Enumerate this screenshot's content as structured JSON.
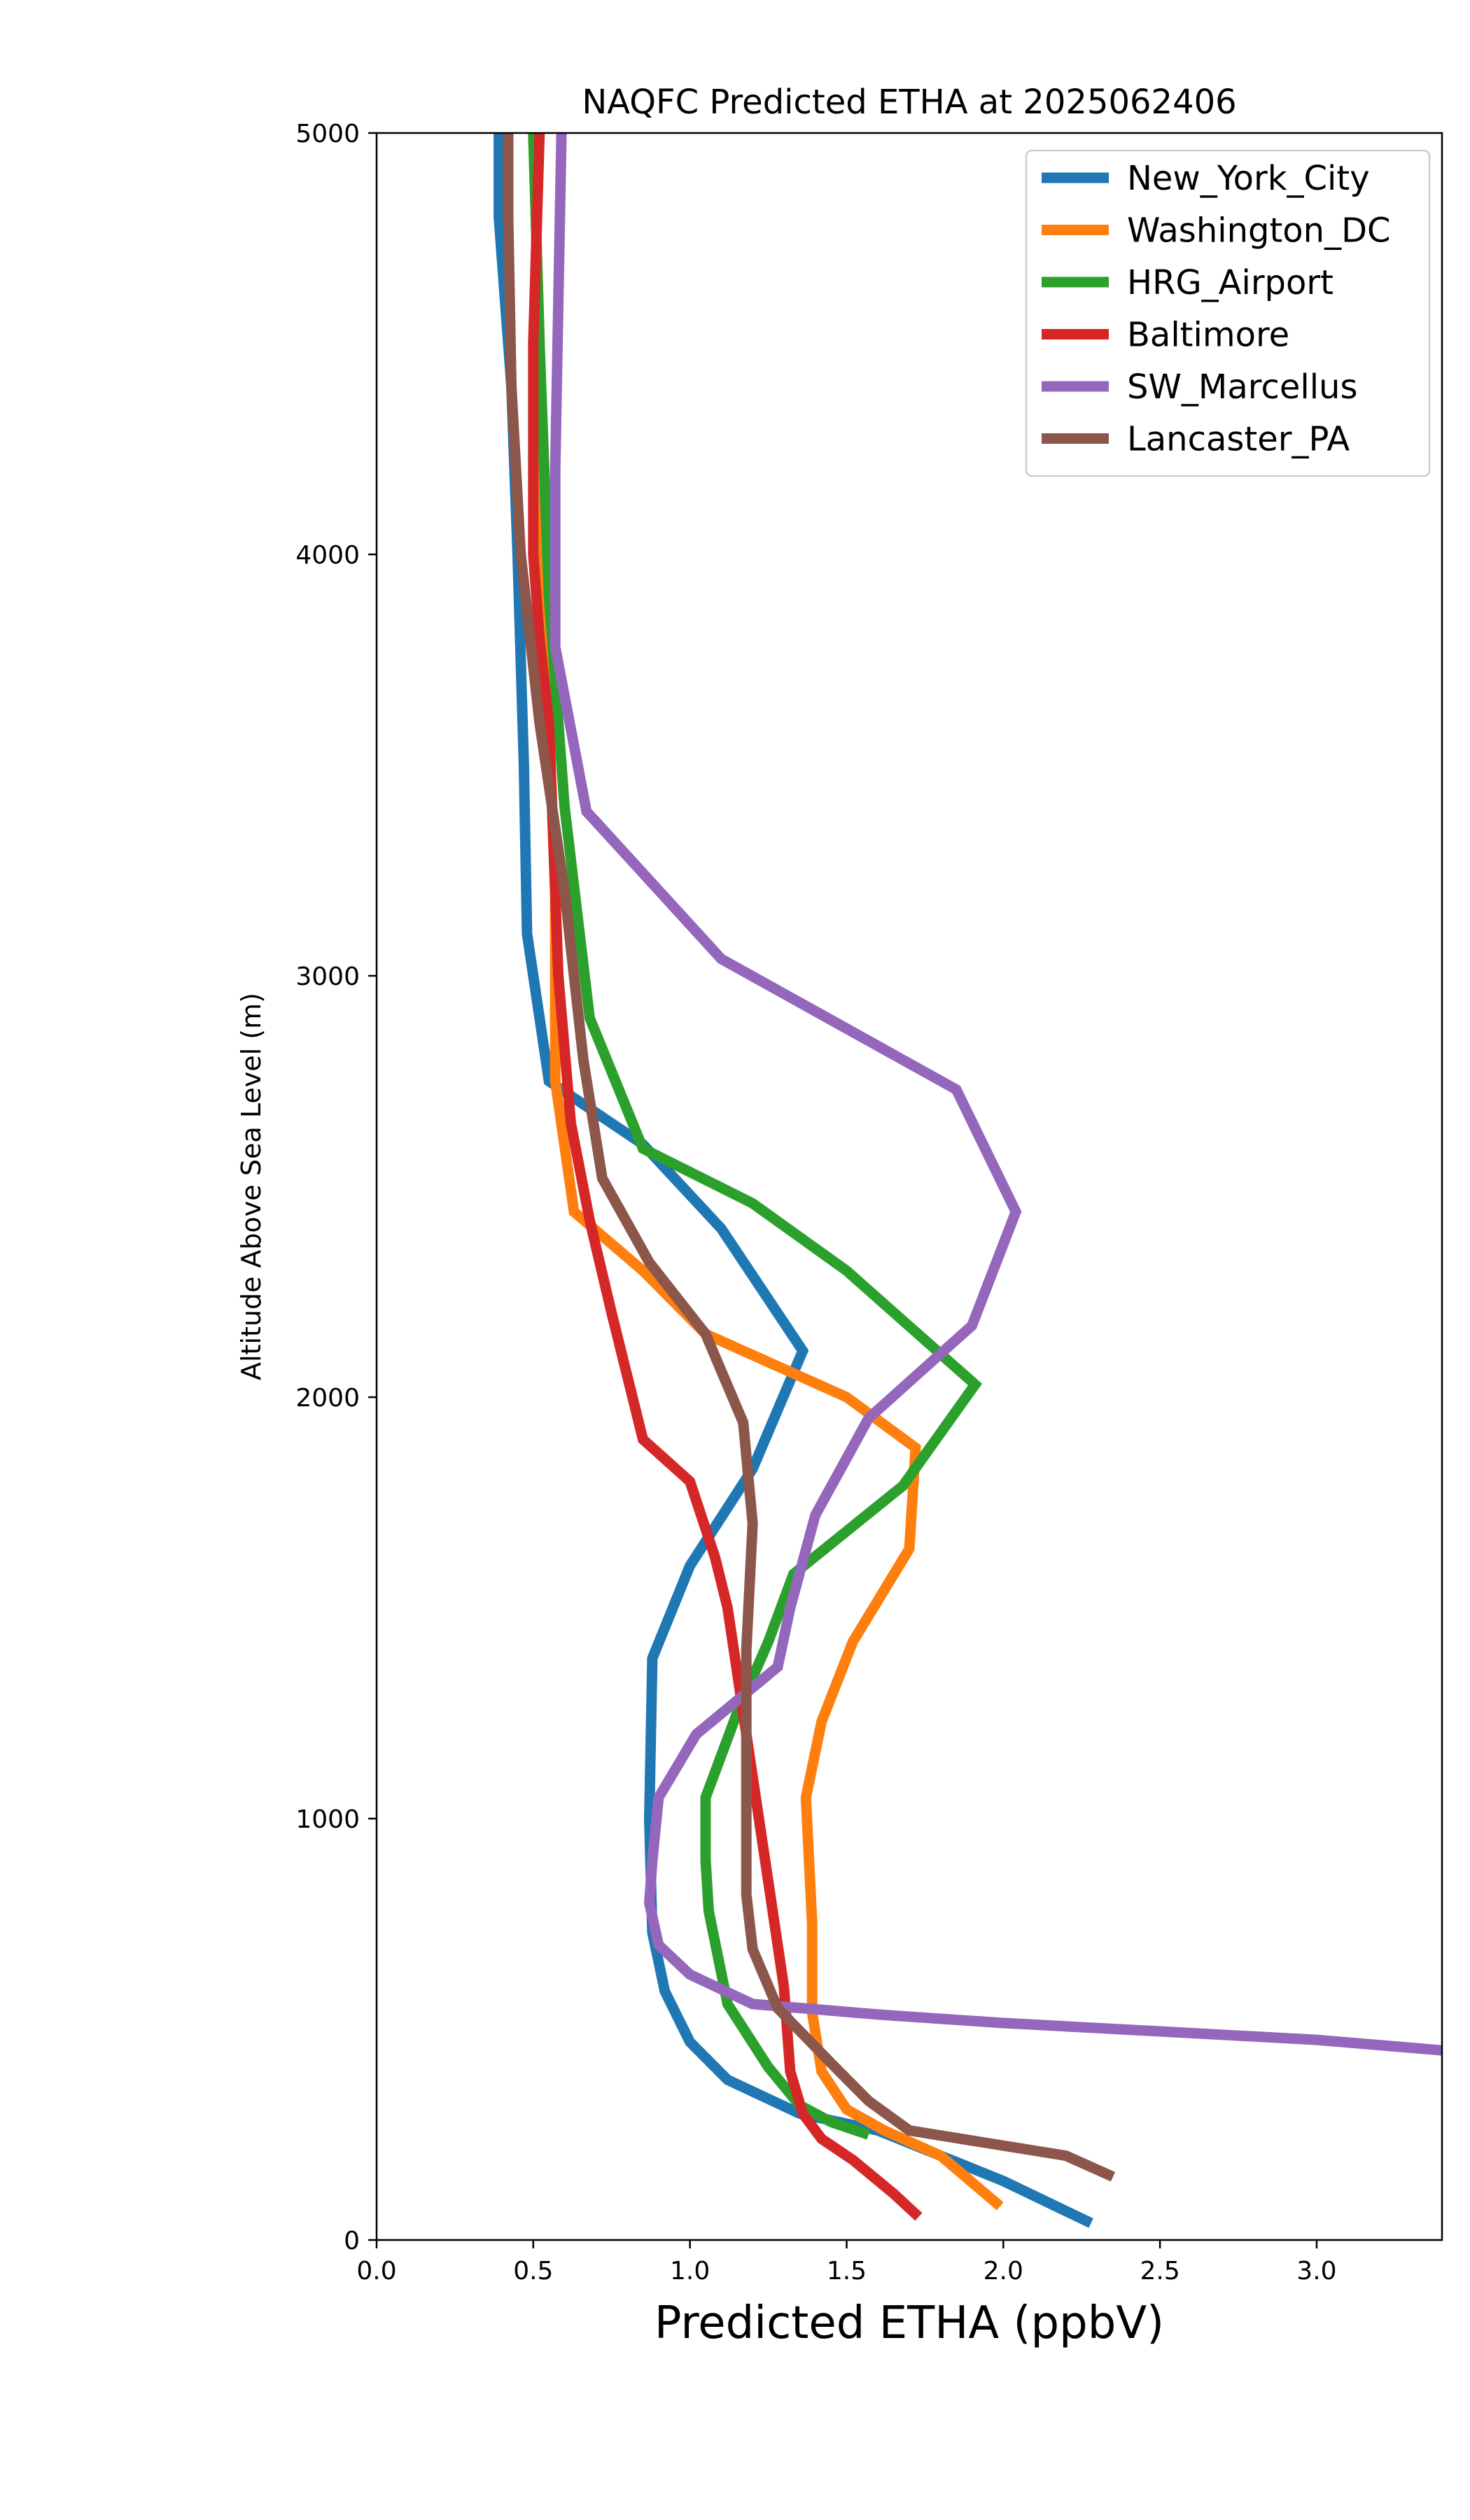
{
  "chart_data": {
    "type": "line",
    "title": "NAQFC Predicted ETHA at 2025062406",
    "xlabel": "Predicted ETHA (ppbV)",
    "ylabel": "Altitude Above Sea Level (m)",
    "xlim": [
      0,
      3.4
    ],
    "ylim": [
      0,
      5000
    ],
    "xticks": [
      0.0,
      0.5,
      1.0,
      1.5,
      2.0,
      2.5,
      3.0
    ],
    "xtick_labels": [
      "0.0",
      "0.5",
      "1.0",
      "1.5",
      "2.0",
      "2.5",
      "3.0"
    ],
    "yticks": [
      0,
      1000,
      2000,
      3000,
      4000,
      5000
    ],
    "ytick_labels": [
      "0",
      "1000",
      "2000",
      "3000",
      "4000",
      "5000"
    ],
    "grid": false,
    "legend_position": "top-right",
    "series": [
      {
        "name": "New_York_City",
        "color": "#1f77b4",
        "points": [
          [
            2.28,
            40
          ],
          [
            2.0,
            140
          ],
          [
            1.6,
            260
          ],
          [
            1.35,
            300
          ],
          [
            1.12,
            380
          ],
          [
            1.0,
            470
          ],
          [
            0.92,
            590
          ],
          [
            0.88,
            730
          ],
          [
            0.87,
            1000
          ],
          [
            0.88,
            1380
          ],
          [
            1.0,
            1600
          ],
          [
            1.2,
            1830
          ],
          [
            1.36,
            2110
          ],
          [
            1.1,
            2400
          ],
          [
            0.85,
            2600
          ],
          [
            0.55,
            2750
          ],
          [
            0.48,
            3100
          ],
          [
            0.47,
            3500
          ],
          [
            0.45,
            4000
          ],
          [
            0.43,
            4400
          ],
          [
            0.39,
            4800
          ],
          [
            0.39,
            5000
          ]
        ]
      },
      {
        "name": "Washington_DC",
        "color": "#ff7f0e",
        "points": [
          [
            1.99,
            80
          ],
          [
            1.8,
            200
          ],
          [
            1.62,
            260
          ],
          [
            1.5,
            310
          ],
          [
            1.42,
            400
          ],
          [
            1.39,
            540
          ],
          [
            1.39,
            750
          ],
          [
            1.37,
            1050
          ],
          [
            1.42,
            1230
          ],
          [
            1.52,
            1420
          ],
          [
            1.7,
            1640
          ],
          [
            1.72,
            1880
          ],
          [
            1.5,
            2000
          ],
          [
            1.05,
            2150
          ],
          [
            0.85,
            2300
          ],
          [
            0.63,
            2440
          ],
          [
            0.57,
            2750
          ],
          [
            0.57,
            3200
          ],
          [
            0.55,
            3600
          ],
          [
            0.53,
            4000
          ],
          [
            0.52,
            4500
          ],
          [
            0.5,
            5000
          ]
        ]
      },
      {
        "name": "HRG_Airport",
        "color": "#2ca02c",
        "points": [
          [
            1.57,
            250
          ],
          [
            1.45,
            280
          ],
          [
            1.35,
            320
          ],
          [
            1.25,
            410
          ],
          [
            1.12,
            560
          ],
          [
            1.06,
            780
          ],
          [
            1.05,
            900
          ],
          [
            1.05,
            1050
          ],
          [
            1.15,
            1250
          ],
          [
            1.25,
            1420
          ],
          [
            1.33,
            1580
          ],
          [
            1.68,
            1790
          ],
          [
            1.91,
            2030
          ],
          [
            1.5,
            2300
          ],
          [
            1.2,
            2460
          ],
          [
            0.85,
            2590
          ],
          [
            0.68,
            2900
          ],
          [
            0.6,
            3400
          ],
          [
            0.55,
            3900
          ],
          [
            0.52,
            4500
          ],
          [
            0.5,
            5000
          ]
        ]
      },
      {
        "name": "Baltimore",
        "color": "#d62728",
        "points": [
          [
            1.73,
            55
          ],
          [
            1.65,
            110
          ],
          [
            1.52,
            190
          ],
          [
            1.42,
            240
          ],
          [
            1.36,
            300
          ],
          [
            1.32,
            400
          ],
          [
            1.3,
            600
          ],
          [
            1.25,
            850
          ],
          [
            1.18,
            1200
          ],
          [
            1.12,
            1500
          ],
          [
            1.08,
            1620
          ],
          [
            1.0,
            1800
          ],
          [
            0.85,
            1900
          ],
          [
            0.8,
            2050
          ],
          [
            0.75,
            2200
          ],
          [
            0.68,
            2420
          ],
          [
            0.62,
            2650
          ],
          [
            0.58,
            3000
          ],
          [
            0.56,
            3400
          ],
          [
            0.55,
            3600
          ],
          [
            0.52,
            3800
          ],
          [
            0.5,
            4000
          ],
          [
            0.5,
            4500
          ],
          [
            0.52,
            5000
          ]
        ]
      },
      {
        "name": "SW_Marcellus",
        "color": "#9467bd",
        "points": [
          [
            3.4,
            450
          ],
          [
            3.0,
            475
          ],
          [
            2.5,
            495
          ],
          [
            2.0,
            515
          ],
          [
            1.6,
            535
          ],
          [
            1.2,
            560
          ],
          [
            1.0,
            630
          ],
          [
            0.9,
            700
          ],
          [
            0.87,
            800
          ],
          [
            0.88,
            900
          ],
          [
            0.9,
            1050
          ],
          [
            1.02,
            1200
          ],
          [
            1.28,
            1360
          ],
          [
            1.32,
            1500
          ],
          [
            1.4,
            1720
          ],
          [
            1.57,
            1950
          ],
          [
            1.9,
            2170
          ],
          [
            2.04,
            2440
          ],
          [
            1.85,
            2730
          ],
          [
            1.1,
            3040
          ],
          [
            0.67,
            3390
          ],
          [
            0.57,
            3780
          ],
          [
            0.57,
            4200
          ],
          [
            0.58,
            4600
          ],
          [
            0.59,
            5000
          ]
        ]
      },
      {
        "name": "Lancaster_PA",
        "color": "#8c564b",
        "points": [
          [
            2.35,
            150
          ],
          [
            2.2,
            200
          ],
          [
            1.7,
            260
          ],
          [
            1.57,
            330
          ],
          [
            1.45,
            420
          ],
          [
            1.28,
            550
          ],
          [
            1.2,
            690
          ],
          [
            1.18,
            820
          ],
          [
            1.18,
            1000
          ],
          [
            1.18,
            1200
          ],
          [
            1.18,
            1400
          ],
          [
            1.2,
            1700
          ],
          [
            1.17,
            1940
          ],
          [
            1.05,
            2150
          ],
          [
            0.87,
            2320
          ],
          [
            0.72,
            2520
          ],
          [
            0.66,
            2800
          ],
          [
            0.6,
            3200
          ],
          [
            0.52,
            3600
          ],
          [
            0.46,
            4000
          ],
          [
            0.43,
            4400
          ],
          [
            0.42,
            4800
          ],
          [
            0.42,
            5000
          ]
        ]
      }
    ]
  }
}
